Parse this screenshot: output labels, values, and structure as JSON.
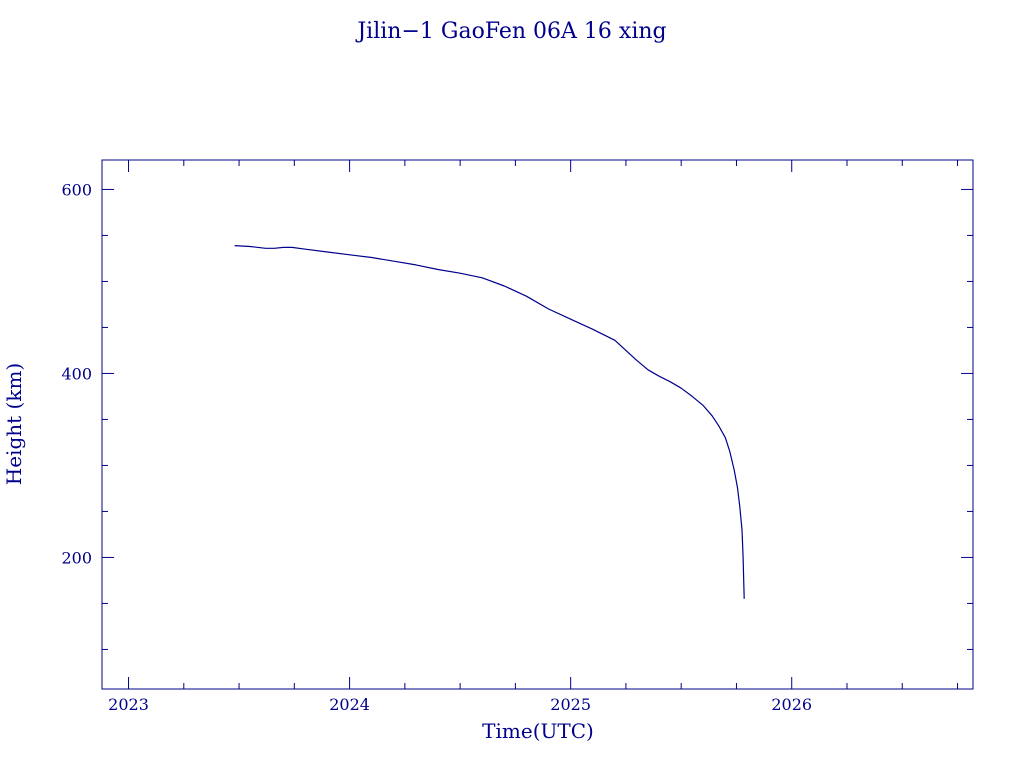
{
  "chart_data": {
    "type": "line",
    "title": "Jilin−1 GaoFen 06A 16 xing",
    "xlabel": "Time(UTC)",
    "ylabel": "Height (km)",
    "xlim": [
      2022.88,
      2026.82
    ],
    "ylim": [
      57,
      632
    ],
    "x_ticks": [
      2023,
      2024,
      2025,
      2026
    ],
    "x_tick_labels": [
      "2023",
      "2024",
      "2025",
      "2026"
    ],
    "y_ticks": [
      200,
      400,
      600
    ],
    "y_tick_labels": [
      "200",
      "400",
      "600"
    ],
    "grid": false,
    "color": "#00008b",
    "series": [
      {
        "x": [
          2023.48,
          2023.55,
          2023.62,
          2023.66,
          2023.7,
          2023.74,
          2023.8,
          2023.9,
          2024.0,
          2024.1,
          2024.2,
          2024.3,
          2024.4,
          2024.5,
          2024.6,
          2024.7,
          2024.8,
          2024.9,
          2025.0,
          2025.1,
          2025.2,
          2025.25,
          2025.3,
          2025.35,
          2025.4,
          2025.45,
          2025.5,
          2025.55,
          2025.6,
          2025.64,
          2025.67,
          2025.7,
          2025.72,
          2025.74,
          2025.755,
          2025.765,
          2025.775,
          2025.78,
          2025.785
        ],
        "y": [
          539,
          538,
          536,
          536,
          537,
          537,
          535,
          532,
          529,
          526,
          522,
          518,
          513,
          509,
          504,
          495,
          484,
          470,
          459,
          448,
          436,
          425,
          414,
          404,
          397,
          391,
          384,
          375,
          365,
          354,
          343,
          330,
          315,
          295,
          275,
          255,
          230,
          200,
          155
        ]
      }
    ]
  }
}
